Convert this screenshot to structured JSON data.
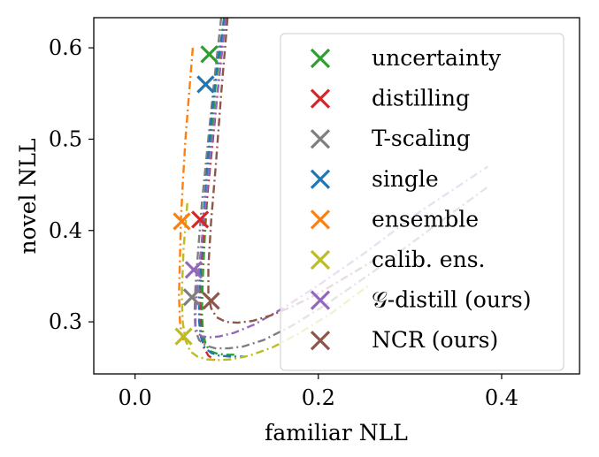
{
  "chart_data": {
    "type": "line",
    "title": "",
    "xlabel": "familiar NLL",
    "ylabel": "novel NLL",
    "xlim": [
      -0.045,
      0.485
    ],
    "ylim": [
      0.243,
      0.633
    ],
    "x_ticks": [
      0.0,
      0.2,
      0.4
    ],
    "x_tick_labels": [
      "0.0",
      "0.2",
      "0.4"
    ],
    "y_ticks": [
      0.3,
      0.4,
      0.5,
      0.6
    ],
    "y_tick_labels": [
      "0.3",
      "0.4",
      "0.5",
      "0.6"
    ],
    "grid": false,
    "legend_position": "top-right",
    "series": [
      {
        "name": "uncertainty",
        "color": "#2ca02c",
        "marker": [
          0.081,
          0.593
        ],
        "x": [
          0.097,
          0.088,
          0.083,
          0.079,
          0.076,
          0.074,
          0.073,
          0.074,
          0.077,
          0.082,
          0.09,
          0.1,
          0.11
        ],
        "y": [
          0.633,
          0.56,
          0.5,
          0.44,
          0.39,
          0.35,
          0.31,
          0.29,
          0.275,
          0.268,
          0.265,
          0.264,
          0.264
        ]
      },
      {
        "name": "distilling",
        "color": "#d62728",
        "marker": [
          0.071,
          0.412
        ],
        "x": [
          0.098,
          0.094,
          0.088,
          0.083,
          0.079,
          0.075,
          0.072,
          0.071,
          0.072,
          0.075,
          0.08,
          0.087
        ],
        "y": [
          0.633,
          0.59,
          0.53,
          0.48,
          0.44,
          0.4,
          0.36,
          0.32,
          0.29,
          0.272,
          0.263,
          0.258
        ]
      },
      {
        "name": "T-scaling",
        "color": "#7f7f7f",
        "marker": [
          0.062,
          0.327
        ],
        "x": [
          0.094,
          0.086,
          0.079,
          0.073,
          0.069,
          0.066,
          0.065,
          0.066,
          0.07,
          0.077,
          0.088,
          0.102,
          0.118,
          0.14,
          0.17,
          0.21,
          0.26,
          0.32,
          0.385
        ],
        "y": [
          0.633,
          0.56,
          0.49,
          0.43,
          0.38,
          0.34,
          0.31,
          0.29,
          0.28,
          0.274,
          0.271,
          0.271,
          0.273,
          0.28,
          0.295,
          0.32,
          0.355,
          0.4,
          0.448
        ]
      },
      {
        "name": "single",
        "color": "#1f77b4",
        "marker": [
          0.077,
          0.56
        ],
        "x": [
          0.098,
          0.091,
          0.084,
          0.079,
          0.075,
          0.072,
          0.07,
          0.07,
          0.072,
          0.076,
          0.083,
          0.092,
          0.104,
          0.12
        ],
        "y": [
          0.633,
          0.59,
          0.53,
          0.47,
          0.42,
          0.37,
          0.33,
          0.3,
          0.283,
          0.272,
          0.266,
          0.263,
          0.262,
          0.262
        ]
      },
      {
        "name": "ensemble",
        "color": "#ff7f0e",
        "marker": [
          0.051,
          0.41
        ],
        "x": [
          0.063,
          0.059,
          0.055,
          0.052,
          0.05,
          0.049,
          0.048,
          0.049,
          0.051,
          0.053
        ],
        "y": [
          0.6,
          0.55,
          0.5,
          0.45,
          0.41,
          0.37,
          0.33,
          0.3,
          0.285,
          0.28
        ]
      },
      {
        "name": "calib. ens.",
        "color": "#bcbd22",
        "marker": [
          0.053,
          0.284
        ],
        "x": [
          0.057,
          0.053,
          0.051,
          0.052,
          0.055,
          0.06,
          0.068,
          0.078,
          0.09,
          0.105,
          0.125,
          0.15,
          0.18,
          0.215,
          0.255
        ],
        "y": [
          0.43,
          0.38,
          0.33,
          0.3,
          0.28,
          0.268,
          0.262,
          0.259,
          0.258,
          0.259,
          0.263,
          0.272,
          0.288,
          0.31,
          0.34
        ]
      },
      {
        "name": "𝒢-distill (ours)",
        "color": "#9467bd",
        "marker": [
          0.064,
          0.357
        ],
        "x": [
          0.099,
          0.091,
          0.083,
          0.077,
          0.072,
          0.068,
          0.066,
          0.066,
          0.068,
          0.073,
          0.081,
          0.092,
          0.108,
          0.13,
          0.16,
          0.2,
          0.25,
          0.31,
          0.385
        ],
        "y": [
          0.633,
          0.56,
          0.49,
          0.43,
          0.38,
          0.34,
          0.31,
          0.295,
          0.288,
          0.284,
          0.283,
          0.284,
          0.288,
          0.297,
          0.314,
          0.34,
          0.375,
          0.42,
          0.47
        ]
      },
      {
        "name": "NCR (ours)",
        "color": "#8c564b",
        "marker": [
          0.083,
          0.323
        ],
        "x": [
          0.101,
          0.094,
          0.088,
          0.083,
          0.08,
          0.08,
          0.083,
          0.089,
          0.099,
          0.112,
          0.128,
          0.148,
          0.172,
          0.2,
          0.232,
          0.268
        ],
        "y": [
          0.633,
          0.55,
          0.47,
          0.41,
          0.36,
          0.33,
          0.315,
          0.305,
          0.3,
          0.299,
          0.301,
          0.307,
          0.317,
          0.331,
          0.35,
          0.372
        ]
      }
    ]
  }
}
